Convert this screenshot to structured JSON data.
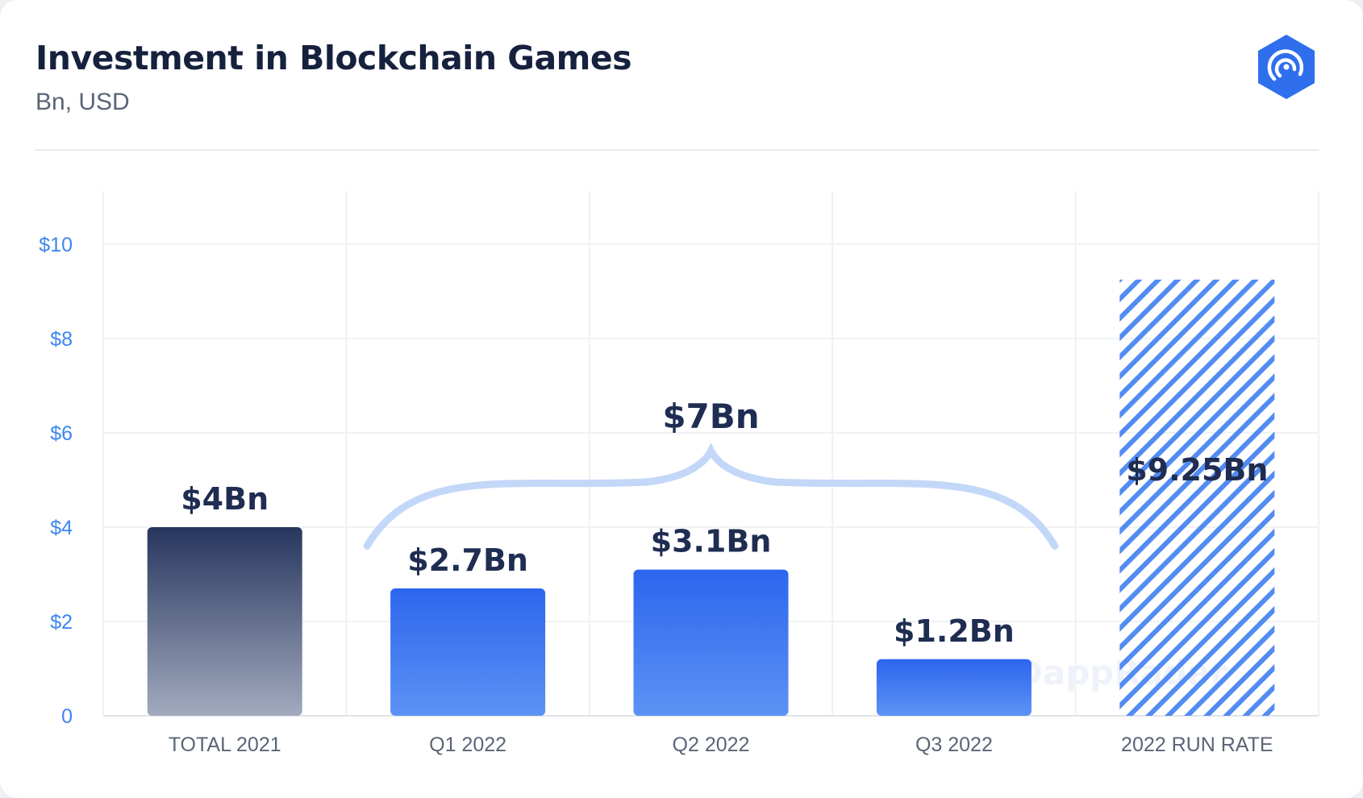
{
  "header": {
    "title": "Investment in Blockchain Games",
    "subtitle": "Bn, USD"
  },
  "logo": {
    "icon": "dappradar-logo-icon",
    "color": "#2f6fee"
  },
  "watermark": {
    "text": "DappRadar"
  },
  "colors": {
    "total_top": "#27365e",
    "total_bottom": "#a2aabe",
    "quarter_top": "#2c66ee",
    "quarter_bottom": "#5d92f4",
    "hatch": "#3f7ff0",
    "brace": "#c3d7f8",
    "tick_label": "#3b86f0",
    "category_label": "#5b6577",
    "value_label": "#1f2d52"
  },
  "chart_data": {
    "type": "bar",
    "title": "Investment in Blockchain Games",
    "subtitle": "Bn, USD",
    "xlabel": "",
    "ylabel": "",
    "ylim": [
      0,
      10
    ],
    "yticks": [
      0,
      2,
      4,
      6,
      8,
      10
    ],
    "ytick_labels": [
      "0",
      "$2",
      "$4",
      "$6",
      "$8",
      "$10"
    ],
    "grid": true,
    "categories": [
      "TOTAL 2021",
      "Q1 2022",
      "Q2 2022",
      "Q3 2022",
      "2022 RUN RATE"
    ],
    "values": [
      4,
      2.7,
      3.1,
      1.2,
      9.25
    ],
    "data_labels": [
      "$4Bn",
      "$2.7Bn",
      "$3.1Bn",
      "$1.2Bn",
      "$9.25Bn"
    ],
    "styles": [
      "dark-gradient",
      "blue-gradient",
      "blue-gradient",
      "blue-gradient",
      "hatched"
    ],
    "annotations": [
      {
        "type": "brace",
        "label": "$7Bn",
        "spans": [
          "Q1 2022",
          "Q3 2022"
        ]
      }
    ]
  }
}
